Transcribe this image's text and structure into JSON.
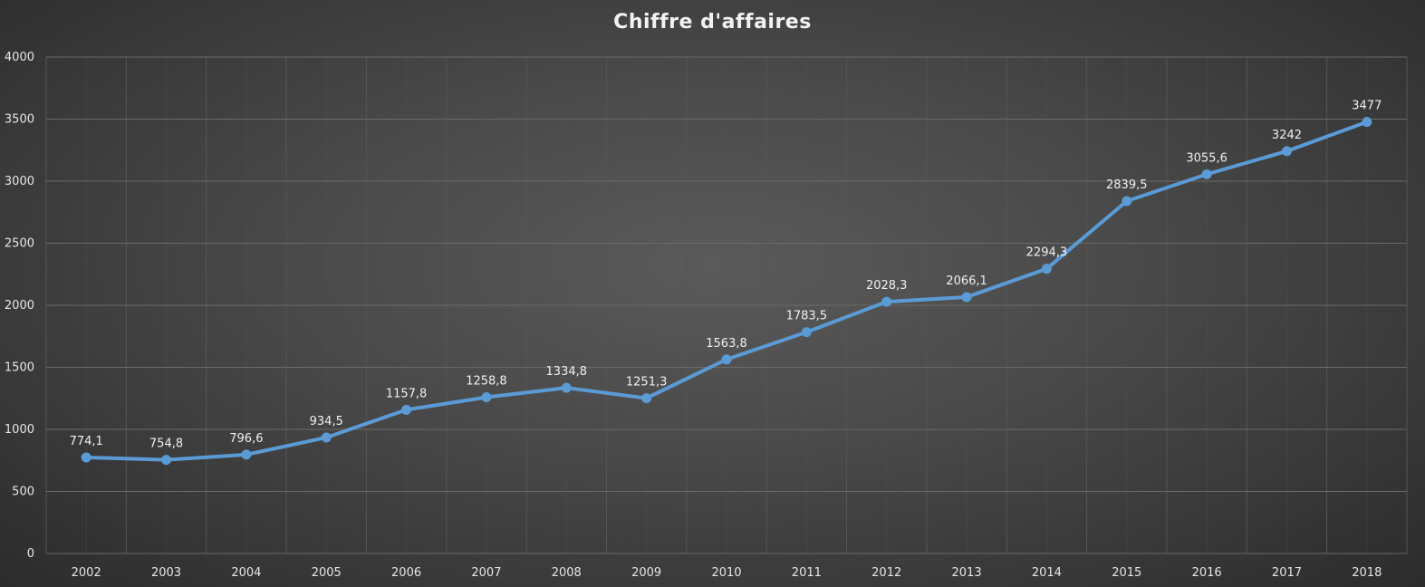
{
  "chart_data": {
    "type": "line",
    "title": "Chiffre d'affaires",
    "xlabel": "",
    "ylabel": "",
    "categories": [
      "2002",
      "2003",
      "2004",
      "2005",
      "2006",
      "2007",
      "2008",
      "2009",
      "2010",
      "2011",
      "2012",
      "2013",
      "2014",
      "2015",
      "2016",
      "2017",
      "2018"
    ],
    "series": [
      {
        "values": [
          774.1,
          754.8,
          796.6,
          934.5,
          1157.8,
          1258.8,
          1334.8,
          1251.3,
          1563.8,
          1783.5,
          2028.3,
          2066.1,
          2294.3,
          2839.5,
          3055.6,
          3242,
          3477
        ],
        "data_labels": [
          "774,1",
          "754,8",
          "796,6",
          "934,5",
          "1157,8",
          "1258,8",
          "1334,8",
          "1251,3",
          "1563,8",
          "1783,5",
          "2028,3",
          "2066,1",
          "2294,3",
          "2839,5",
          "3055,6",
          "3242",
          "3477"
        ]
      }
    ],
    "ylim": [
      0,
      4000
    ],
    "y_ticks": [
      "0",
      "500",
      "1000",
      "1500",
      "2000",
      "2500",
      "3000",
      "3500",
      "4000"
    ],
    "grid": true,
    "legend": "none",
    "colors": {
      "line": "#5b9bd5",
      "grid_major": "#6a6a6a",
      "grid_minor": "#555555",
      "text": "#e6e6e6"
    }
  }
}
